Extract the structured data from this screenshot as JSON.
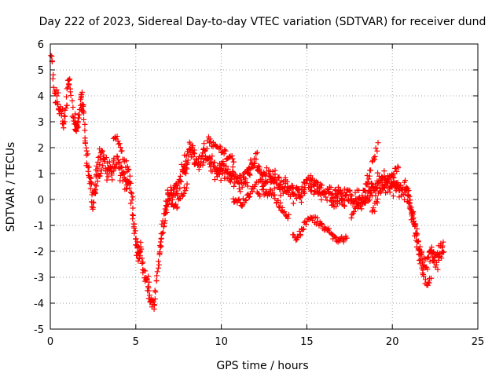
{
  "chart_data": {
    "type": "scatter",
    "title": "Day 222 of 2023, Sidereal Day-to-day VTEC variation (SDTVAR) for receiver dund",
    "xlabel": "GPS time / hours",
    "ylabel": "SDTVAR / TECUs",
    "xlim": [
      0,
      25
    ],
    "ylim": [
      -5,
      6
    ],
    "xticks": [
      0,
      5,
      10,
      15,
      20,
      25
    ],
    "yticks": [
      -5,
      -4,
      -3,
      -2,
      -1,
      0,
      1,
      2,
      3,
      4,
      5,
      6
    ],
    "grid": true,
    "marker": "plus",
    "color": "#ff0000",
    "series": [
      {
        "name": "SDTVAR",
        "trace": [
          [
            0.0,
            5.5
          ],
          [
            0.05,
            5.7
          ],
          [
            0.1,
            5.2
          ],
          [
            0.15,
            4.8
          ],
          [
            0.2,
            4.4
          ],
          [
            0.25,
            4.0
          ],
          [
            0.3,
            3.8
          ],
          [
            0.35,
            4.2
          ],
          [
            0.4,
            3.9
          ],
          [
            0.5,
            3.6
          ],
          [
            0.6,
            3.4
          ],
          [
            0.7,
            3.3
          ],
          [
            0.8,
            3.0
          ],
          [
            0.9,
            3.6
          ],
          [
            1.0,
            4.2
          ],
          [
            1.1,
            4.6
          ],
          [
            1.2,
            4.0
          ],
          [
            1.3,
            3.3
          ],
          [
            1.4,
            3.0
          ],
          [
            1.5,
            2.6
          ],
          [
            1.6,
            2.8
          ],
          [
            1.7,
            3.4
          ],
          [
            1.8,
            3.9
          ],
          [
            1.9,
            3.6
          ],
          [
            2.0,
            2.8
          ],
          [
            2.1,
            2.0
          ],
          [
            2.2,
            1.3
          ],
          [
            2.3,
            0.8
          ],
          [
            2.4,
            0.3
          ],
          [
            2.5,
            0.0
          ],
          [
            2.6,
            0.5
          ],
          [
            2.7,
            1.0
          ],
          [
            2.8,
            1.4
          ],
          [
            3.0,
            1.8
          ],
          [
            3.1,
            1.6
          ],
          [
            3.3,
            1.2
          ],
          [
            3.5,
            1.0
          ],
          [
            3.7,
            1.3
          ],
          [
            3.9,
            1.5
          ],
          [
            4.0,
            1.3
          ],
          [
            4.2,
            1.0
          ],
          [
            4.4,
            0.7
          ],
          [
            4.5,
            0.8
          ],
          [
            4.6,
            0.6
          ],
          [
            4.7,
            0.2
          ],
          [
            4.8,
            -0.5
          ],
          [
            4.9,
            -1.2
          ],
          [
            5.0,
            -1.8
          ],
          [
            5.1,
            -2.1
          ],
          [
            5.2,
            -2.2
          ],
          [
            5.3,
            -2.0
          ],
          [
            5.4,
            -2.4
          ],
          [
            5.5,
            -2.8
          ],
          [
            5.6,
            -3.1
          ],
          [
            5.7,
            -3.4
          ],
          [
            5.8,
            -3.7
          ],
          [
            5.9,
            -3.9
          ],
          [
            6.0,
            -4.1
          ],
          [
            6.1,
            -3.8
          ],
          [
            6.2,
            -3.2
          ],
          [
            6.3,
            -2.6
          ],
          [
            6.4,
            -2.0
          ],
          [
            6.5,
            -1.4
          ],
          [
            6.6,
            -0.9
          ],
          [
            6.7,
            -0.4
          ],
          [
            6.8,
            0.0
          ],
          [
            6.9,
            0.3
          ],
          [
            7.0,
            0.4
          ],
          [
            7.2,
            0.3
          ],
          [
            7.4,
            0.5
          ],
          [
            7.6,
            0.8
          ],
          [
            7.8,
            1.2
          ],
          [
            8.0,
            1.6
          ],
          [
            8.1,
            1.9
          ],
          [
            8.2,
            2.0
          ],
          [
            8.4,
            1.6
          ],
          [
            8.6,
            1.3
          ],
          [
            8.8,
            1.6
          ],
          [
            9.0,
            1.8
          ],
          [
            9.2,
            1.5
          ],
          [
            9.4,
            1.4
          ],
          [
            9.6,
            1.2
          ],
          [
            9.8,
            1.1
          ],
          [
            10.0,
            1.2
          ],
          [
            10.3,
            1.0
          ],
          [
            10.6,
            0.9
          ],
          [
            10.9,
            0.8
          ],
          [
            11.2,
            0.7
          ],
          [
            11.5,
            0.9
          ],
          [
            11.8,
            1.2
          ],
          [
            12.0,
            1.6
          ],
          [
            12.2,
            1.0
          ],
          [
            12.5,
            0.8
          ],
          [
            12.8,
            0.9
          ],
          [
            13.1,
            0.8
          ],
          [
            13.4,
            0.6
          ],
          [
            13.7,
            0.5
          ],
          [
            14.0,
            0.3
          ],
          [
            14.3,
            0.2
          ],
          [
            14.6,
            0.3
          ],
          [
            14.9,
            0.5
          ],
          [
            15.2,
            0.7
          ],
          [
            15.5,
            0.5
          ],
          [
            15.8,
            0.3
          ],
          [
            16.1,
            0.2
          ],
          [
            16.4,
            0.1
          ],
          [
            16.7,
            0.0
          ],
          [
            17.0,
            0.1
          ],
          [
            17.3,
            0.2
          ],
          [
            17.6,
            0.1
          ],
          [
            17.9,
            0.0
          ],
          [
            18.2,
            -0.1
          ],
          [
            18.5,
            0.2
          ],
          [
            18.8,
            0.4
          ],
          [
            19.1,
            0.6
          ],
          [
            19.4,
            0.7
          ],
          [
            19.7,
            0.6
          ],
          [
            20.0,
            0.5
          ],
          [
            20.3,
            0.4
          ],
          [
            20.6,
            0.3
          ],
          [
            20.9,
            0.1
          ],
          [
            21.1,
            -0.4
          ],
          [
            21.3,
            -1.0
          ],
          [
            21.5,
            -1.6
          ],
          [
            21.7,
            -2.2
          ],
          [
            21.9,
            -2.5
          ],
          [
            22.1,
            -2.3
          ],
          [
            22.3,
            -2.0
          ],
          [
            22.5,
            -2.4
          ],
          [
            22.7,
            -2.2
          ],
          [
            22.9,
            -1.8
          ]
        ],
        "offsets": [
          [
            2.2,
            0.3,
            -0.6
          ],
          [
            4.5,
            1.0,
            0.2
          ],
          [
            7.2,
            -0.2,
            -1.0
          ],
          [
            10.0,
            0.9,
            0.6
          ],
          [
            11.5,
            -0.8,
            -0.9
          ],
          [
            13.2,
            -0.5,
            -1.0
          ],
          [
            15.0,
            -1.7,
            -1.2
          ],
          [
            16.6,
            -1.2,
            -1.8
          ],
          [
            18.4,
            -0.7,
            1.5
          ],
          [
            19.6,
            -1.0,
            1.0
          ],
          [
            21.5,
            0.5,
            -1.1
          ]
        ],
        "x_range_covered": [
          0,
          23
        ],
        "y_range_covered": [
          -4.2,
          5.7
        ]
      }
    ]
  }
}
